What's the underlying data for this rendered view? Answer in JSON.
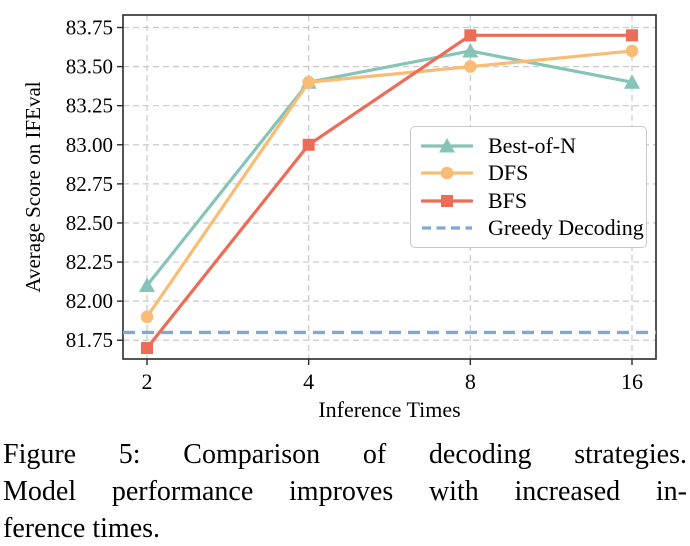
{
  "figure": {
    "caption_lines": [
      "Figure 5: Comparison of decoding strategies.",
      "Model performance improves with increased in-",
      "ference times."
    ]
  },
  "chart_data": {
    "type": "line",
    "title": "",
    "xlabel": "Inference Times",
    "ylabel": "Average Score on IFEval",
    "x_categories": [
      "2",
      "4",
      "8",
      "16"
    ],
    "x_values": [
      2,
      4,
      8,
      16
    ],
    "x_scale": "log2-equally-spaced",
    "ytick_labels": [
      "81.75",
      "82.00",
      "82.25",
      "82.50",
      "82.75",
      "83.00",
      "83.25",
      "83.50",
      "83.75"
    ],
    "ytick_values": [
      81.75,
      82.0,
      82.25,
      82.5,
      82.75,
      83.0,
      83.25,
      83.5,
      83.75
    ],
    "ylim": [
      81.63,
      83.83
    ],
    "grid": "dashed both axes",
    "legend_position": "inside center-right",
    "series": [
      {
        "name": "Best-of-N",
        "marker": "triangle",
        "line_style": "solid",
        "color": "#85C4B7",
        "values": [
          82.1,
          83.4,
          83.6,
          83.4
        ]
      },
      {
        "name": "DFS",
        "marker": "circle",
        "line_style": "solid",
        "color": "#F8BC74",
        "values": [
          81.9,
          83.4,
          83.5,
          83.6
        ]
      },
      {
        "name": "BFS",
        "marker": "square",
        "line_style": "solid",
        "color": "#EC6C58",
        "values": [
          81.7,
          83.0,
          83.7,
          83.7
        ]
      },
      {
        "name": "Greedy Decoding",
        "marker": "none",
        "line_style": "dashed",
        "color": "#7FA8D3",
        "baseline_value": 81.8
      }
    ],
    "colors": {
      "grid": "#C9C9C9",
      "frame": "#2B2B2B",
      "text": "#000000",
      "background": "#FFFFFF"
    }
  }
}
